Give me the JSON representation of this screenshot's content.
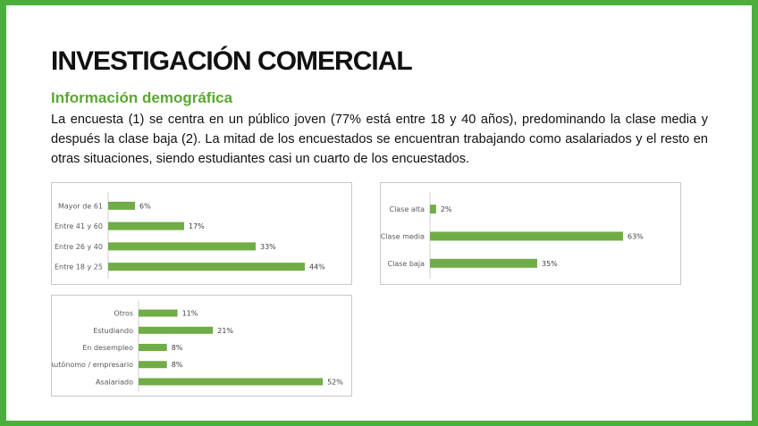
{
  "slide": {
    "title": "INVESTIGACIÓN COMERCIAL",
    "subtitle": "Información demográfica",
    "paragraph": "La encuesta (1) se centra en un público joven (77% está entre 18 y 40 años), predominando la clase media y después la clase baja (2). La mitad de los encuestados se encuentran trabajando como asalariados y el resto en otras situaciones, siendo estudiantes casi un cuarto de los encuestados.",
    "frame_color": "#4caf3c",
    "accent_color": "#5aa832"
  },
  "chart_data": [
    {
      "type": "bar",
      "orientation": "horizontal",
      "categories": [
        "Mayor de 61",
        "Entre 41 y 60",
        "Entre 26 y 40",
        "Entre 18 y 25"
      ],
      "values": [
        6,
        17,
        33,
        44
      ],
      "value_labels": [
        "6%",
        "17%",
        "33%",
        "44%"
      ],
      "xlim": [
        0,
        50
      ],
      "bar_color": "#70ad47",
      "grid": false,
      "legend": false
    },
    {
      "type": "bar",
      "orientation": "horizontal",
      "categories": [
        "Clase alta",
        "Clase media",
        "Clase baja"
      ],
      "values": [
        2,
        63,
        35
      ],
      "value_labels": [
        "2%",
        "63%",
        "35%"
      ],
      "xlim": [
        0,
        70
      ],
      "bar_color": "#70ad47",
      "grid": false,
      "legend": false
    },
    {
      "type": "bar",
      "orientation": "horizontal",
      "categories": [
        "Otros",
        "Estudiando",
        "En desempleo",
        "Autónomo / empresario",
        "Asalariado"
      ],
      "values": [
        11,
        21,
        8,
        8,
        52
      ],
      "value_labels": [
        "11%",
        "21%",
        "8%",
        "8%",
        "52%"
      ],
      "xlim": [
        0,
        55
      ],
      "bar_color": "#70ad47",
      "grid": false,
      "legend": false
    }
  ]
}
